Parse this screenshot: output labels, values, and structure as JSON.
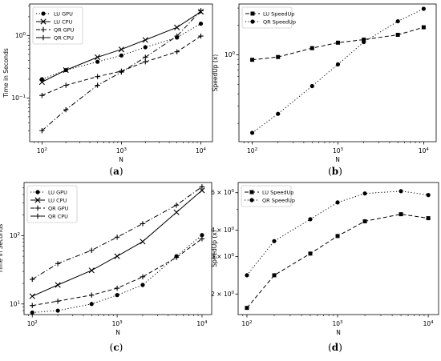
{
  "chart_data": [
    {
      "id": "a",
      "type": "line",
      "caption_letter": "a",
      "xlabel": "N",
      "ylabel": "Time in Seconds",
      "xscale": "log",
      "yscale": "log",
      "xlim": [
        70,
        14000
      ],
      "ylim": [
        0.02,
        3.2
      ],
      "xticks": [
        {
          "v": 100,
          "base": "10",
          "exp": "2"
        },
        {
          "v": 1000,
          "base": "10",
          "exp": "3"
        },
        {
          "v": 10000,
          "base": "10",
          "exp": "4"
        }
      ],
      "yticks": [
        {
          "v": 0.1,
          "base": "10",
          "exp": "−1"
        },
        {
          "v": 1,
          "base": "10",
          "exp": "0"
        }
      ],
      "legend_position": "top-left",
      "x": [
        100,
        200,
        500,
        1000,
        2000,
        5000,
        10000
      ],
      "series": [
        {
          "name": "LU GPU",
          "style": "dotted",
          "marker": "circle",
          "values": [
            0.2,
            0.28,
            0.38,
            0.48,
            0.65,
            0.93,
            1.55
          ]
        },
        {
          "name": "LU CPU",
          "style": "solid",
          "marker": "x",
          "values": [
            0.18,
            0.28,
            0.45,
            0.6,
            0.85,
            1.35,
            2.4
          ]
        },
        {
          "name": "QR GPU",
          "style": "dashed",
          "marker": "plus",
          "values": [
            0.11,
            0.16,
            0.22,
            0.27,
            0.38,
            0.55,
            0.98
          ]
        },
        {
          "name": "QR CPU",
          "style": "dashdot",
          "marker": "plus",
          "values": [
            0.03,
            0.065,
            0.16,
            0.26,
            0.45,
            0.98,
            2.5
          ]
        }
      ]
    },
    {
      "id": "b",
      "type": "line",
      "caption_letter": "b",
      "xlabel": "N",
      "ylabel": "SpeedUp (x)",
      "xscale": "log",
      "yscale": "log",
      "xlim": [
        70,
        14000
      ],
      "ylim": [
        0.13,
        3.3
      ],
      "xticks": [
        {
          "v": 100,
          "base": "10",
          "exp": "2"
        },
        {
          "v": 1000,
          "base": "10",
          "exp": "3"
        },
        {
          "v": 10000,
          "base": "10",
          "exp": "4"
        }
      ],
      "yticks": [
        {
          "v": 1,
          "base": "10",
          "exp": "0"
        }
      ],
      "legend_position": "top-left",
      "x": [
        100,
        200,
        500,
        1000,
        2000,
        5000,
        10000
      ],
      "series": [
        {
          "name": "LU SpeedUp",
          "style": "dashed",
          "marker": "square",
          "values": [
            0.89,
            0.95,
            1.17,
            1.33,
            1.43,
            1.6,
            1.91
          ]
        },
        {
          "name": "QR SpeedUp",
          "style": "dotted",
          "marker": "circle",
          "values": [
            0.16,
            0.25,
            0.48,
            0.8,
            1.35,
            2.2,
            2.95
          ]
        }
      ]
    },
    {
      "id": "c",
      "type": "line",
      "caption_letter": "c",
      "xlabel": "N",
      "ylabel": "Time in Seconds",
      "xscale": "log",
      "yscale": "log",
      "xlim": [
        80,
        13000
      ],
      "ylim": [
        7,
        600
      ],
      "xticks": [
        {
          "v": 100,
          "base": "10",
          "exp": "2"
        },
        {
          "v": 1000,
          "base": "10",
          "exp": "3"
        },
        {
          "v": 10000,
          "base": "10",
          "exp": "4"
        }
      ],
      "yticks": [
        {
          "v": 10,
          "base": "10",
          "exp": "1"
        },
        {
          "v": 100,
          "base": "10",
          "exp": "2"
        }
      ],
      "legend_position": "top-left",
      "x": [
        100,
        200,
        500,
        1000,
        2000,
        5000,
        10000
      ],
      "series": [
        {
          "name": "LU GPU",
          "style": "dotted",
          "marker": "circle",
          "values": [
            7.5,
            8,
            10,
            13.5,
            19,
            50,
            102
          ]
        },
        {
          "name": "LU CPU",
          "style": "solid",
          "marker": "x",
          "values": [
            13,
            19,
            31,
            50,
            82,
            220,
            460
          ]
        },
        {
          "name": "QR GPU",
          "style": "dashed",
          "marker": "plus",
          "values": [
            9.5,
            11,
            13.5,
            17,
            25,
            48,
            90
          ]
        },
        {
          "name": "QR CPU",
          "style": "dashdot",
          "marker": "plus",
          "values": [
            23,
            39,
            61,
            95,
            150,
            280,
            520
          ]
        }
      ]
    },
    {
      "id": "d",
      "type": "line",
      "caption_letter": "d",
      "xlabel": "N",
      "ylabel": "SpeedUp (x)",
      "xscale": "log",
      "yscale": "log",
      "xlim": [
        80,
        13000
      ],
      "ylim": [
        1.6,
        6.7
      ],
      "xticks": [
        {
          "v": 100,
          "base": "10",
          "exp": "2"
        },
        {
          "v": 1000,
          "base": "10",
          "exp": "3"
        },
        {
          "v": 10000,
          "base": "10",
          "exp": "4"
        }
      ],
      "yticks": [
        {
          "v": 2,
          "base": "2 × 10",
          "exp": "0"
        },
        {
          "v": 3,
          "base": "3 × 10",
          "exp": "0"
        },
        {
          "v": 4,
          "base": "4 × 10",
          "exp": "0"
        },
        {
          "v": 6,
          "base": "6 × 10",
          "exp": "0"
        }
      ],
      "legend_position": "top-left",
      "x": [
        100,
        200,
        500,
        1000,
        2000,
        5000,
        10000
      ],
      "series": [
        {
          "name": "LU SpeedUp",
          "style": "dashed",
          "marker": "square",
          "values": [
            1.72,
            2.45,
            3.1,
            3.75,
            4.4,
            4.75,
            4.55
          ]
        },
        {
          "name": "QR SpeedUp",
          "style": "dotted",
          "marker": "circle",
          "values": [
            2.45,
            3.55,
            4.5,
            5.4,
            5.95,
            6.1,
            5.85
          ]
        }
      ]
    }
  ]
}
